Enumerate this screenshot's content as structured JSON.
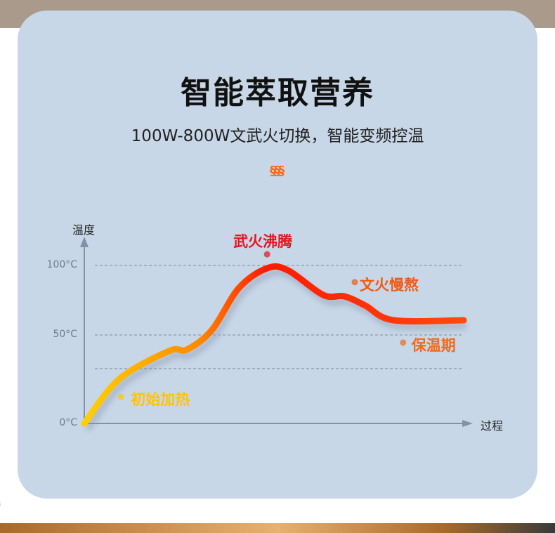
{
  "header": {
    "title": "智能萃取营养",
    "subtitle": "100W-800W文武火切换，智能变频控温",
    "steam_icon": "steam-icon"
  },
  "colors": {
    "card": "#c7d7e7",
    "start": "#ffd000",
    "mid": "#ff8a00",
    "peak": "#ff1a00",
    "end": "#ff4a10"
  },
  "chart_data": {
    "type": "line",
    "title": "",
    "xlabel": "过程",
    "ylabel": "温度",
    "yticks": [
      {
        "value": 0,
        "label": "0°C"
      },
      {
        "value": 50,
        "label": "50°C"
      },
      {
        "value": 100,
        "label": "100°C"
      }
    ],
    "gridlines": [
      31,
      50,
      100
    ],
    "xlim": [
      0,
      100
    ],
    "ylim": [
      0,
      110
    ],
    "series": [
      {
        "name": "温度曲线",
        "x": [
          0,
          9,
          22,
          26.5,
          33,
          40,
          47.3,
          52.7,
          61.8,
          67.3,
          72.7,
          80,
          98.2
        ],
        "y": [
          0,
          25,
          41,
          41.7,
          53.5,
          83.8,
          98,
          96.5,
          78.8,
          77.8,
          71.2,
          60.6,
          60.6
        ]
      }
    ],
    "annotations": [
      {
        "text": "初始加热",
        "x": 9.5,
        "y": 15,
        "color": "#ffc400"
      },
      {
        "text": "武火沸腾",
        "x": 47.3,
        "y": 108,
        "color": "#e8141e"
      },
      {
        "text": "文火慢熬",
        "x": 70,
        "y": 88,
        "color": "#f05a14"
      },
      {
        "text": "保温期",
        "x": 82.5,
        "y": 45.7,
        "color": "#f06a1a"
      }
    ]
  }
}
